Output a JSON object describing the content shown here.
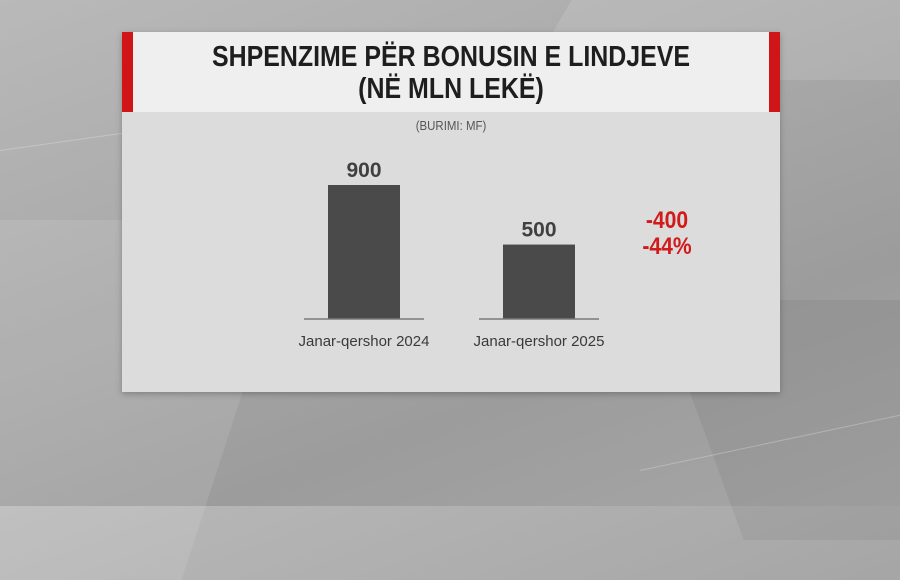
{
  "title_line1": "SHPENZIME PËR BONUSIN E LINDJEVE",
  "title_line2": "(NË MLN LEKË)",
  "source": "(BURIMI: MF)",
  "annotation": {
    "change_abs": "-400",
    "change_pct": "-44%"
  },
  "colors": {
    "bar": "#4a4a4a",
    "accent": "#cf1517",
    "change": "#d11a1a"
  },
  "chart_data": {
    "type": "bar",
    "title": "SHPENZIME PËR BONUSIN E LINDJEVE (NË MLN LEKË)",
    "categories": [
      "Janar-qershor 2024",
      "Janar-qershor 2025"
    ],
    "values": [
      900,
      500
    ],
    "value_labels": [
      "900",
      "500"
    ],
    "ylim": [
      0,
      900
    ],
    "grid": false,
    "legend": "none"
  }
}
